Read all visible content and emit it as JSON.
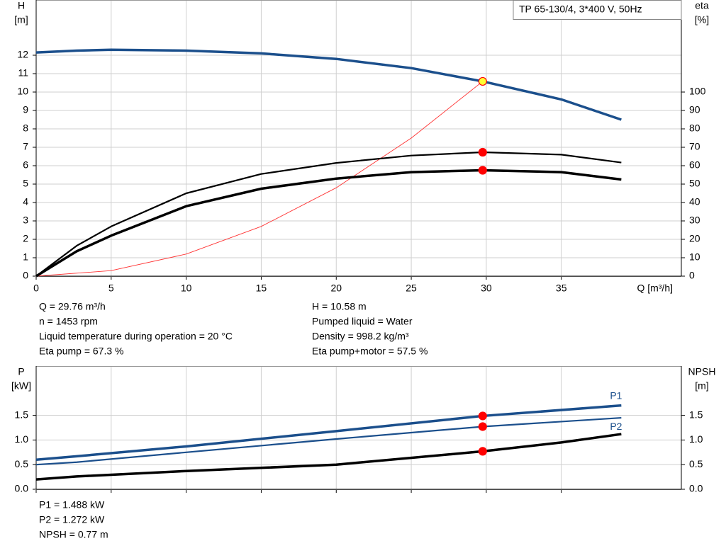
{
  "chart_data": [
    {
      "type": "line",
      "title": "TP 65-130/4, 3*400 V, 50Hz",
      "xlabel": "Q [m³/h]",
      "ylabel": [
        "H",
        "[m]"
      ],
      "y2label": [
        "eta",
        "[%]"
      ],
      "xlim": [
        0,
        43
      ],
      "xticks": [
        0,
        5,
        10,
        15,
        20,
        25,
        30,
        35
      ],
      "xtick_labels": true,
      "ylim": [
        0,
        15
      ],
      "yticks": [
        0,
        1,
        2,
        3,
        4,
        5,
        6,
        7,
        8,
        9,
        10,
        11,
        12
      ],
      "y2lim": [
        0,
        150
      ],
      "y2ticks": [
        0,
        10,
        20,
        30,
        40,
        50,
        60,
        70,
        80,
        90,
        100
      ],
      "grid": true,
      "series": [
        {
          "color": "#1b4f8c",
          "style": "thick",
          "x": [
            0,
            2.7,
            5,
            10,
            15,
            20,
            25,
            29.76,
            35,
            39
          ],
          "values": [
            12.15,
            12.25,
            12.3,
            12.25,
            12.1,
            11.8,
            11.3,
            10.58,
            9.6,
            8.5
          ],
          "point": {
            "x": 29.76,
            "value": 10.58
          },
          "point_fill": "#ffff33"
        },
        {
          "color": "#ff3333",
          "style": "thin",
          "x": [
            0,
            5,
            10,
            15,
            20,
            25,
            29.76
          ],
          "values": [
            0,
            0.3,
            1.2,
            2.7,
            4.8,
            7.5,
            10.58
          ]
        },
        {
          "color": "#000000",
          "style": "medium",
          "axis": "y2",
          "x": [
            0,
            2.7,
            5,
            10,
            15,
            20,
            25,
            29.76,
            35,
            39
          ],
          "values": [
            0,
            16.5,
            27,
            45,
            55.5,
            61.5,
            65.5,
            67.3,
            66,
            61.7
          ],
          "point": {
            "x": 29.76,
            "value": 67.3
          },
          "point_fill": "#ff0000"
        },
        {
          "color": "#000000",
          "style": "thick",
          "axis": "y2",
          "x": [
            0,
            2.7,
            5,
            10,
            15,
            20,
            25,
            29.76,
            35,
            39
          ],
          "values": [
            0,
            13.5,
            22,
            38,
            47.5,
            53,
            56.5,
            57.5,
            56.5,
            52.5
          ],
          "point": {
            "x": 29.76,
            "value": 57.5
          },
          "point_fill": "#ff0000"
        }
      ],
      "info_left": [
        "Q = 29.76 m³/h",
        "n = 1453 rpm",
        "Liquid temperature during operation = 20 °C",
        "Eta pump = 67.3 %"
      ],
      "info_right": [
        "H = 10.58 m",
        "Pumped liquid = Water",
        "Density = 998.2 kg/m³",
        "Eta pump+motor = 57.5 %"
      ]
    },
    {
      "type": "line",
      "ylabel": [
        "P",
        "[kW]"
      ],
      "y2label": [
        "NPSH",
        "[m]"
      ],
      "xlim": [
        0,
        43
      ],
      "xticks": [
        0,
        5,
        10,
        15,
        20,
        25,
        30,
        35
      ],
      "xtick_labels": false,
      "ylim": [
        0,
        2.5
      ],
      "yticks": [
        {
          "value": 0,
          "label": "0.0"
        },
        0.5,
        {
          "value": 1,
          "label": "1.0"
        },
        1.5
      ],
      "y2lim": [
        0,
        2.5
      ],
      "y2ticks": [
        {
          "value": 0,
          "label": "0.0"
        },
        0.5,
        {
          "value": 1,
          "label": "1.0"
        },
        1.5
      ],
      "grid": true,
      "series": [
        {
          "name": "P1",
          "label_position": "above",
          "color": "#1b4f8c",
          "style": "thick",
          "x": [
            0,
            2.7,
            10,
            20,
            29.76,
            39
          ],
          "values": [
            0.6,
            0.67,
            0.87,
            1.18,
            1.488,
            1.7
          ],
          "point": {
            "x": 29.76,
            "value": 1.488
          },
          "point_fill": "#ff0000"
        },
        {
          "name": "P2",
          "label_position": "below",
          "color": "#1b4f8c",
          "style": "medium",
          "x": [
            0,
            2.7,
            10,
            20,
            29.76,
            39
          ],
          "values": [
            0.5,
            0.55,
            0.75,
            1.02,
            1.272,
            1.45
          ],
          "point": {
            "x": 29.76,
            "value": 1.272
          },
          "point_fill": "#ff0000"
        },
        {
          "color": "#000000",
          "style": "thick",
          "axis": "y2",
          "x": [
            0,
            2.7,
            10,
            20,
            29.76,
            35,
            39
          ],
          "values": [
            0.2,
            0.26,
            0.37,
            0.5,
            0.77,
            0.95,
            1.12
          ],
          "point": {
            "x": 29.76,
            "value": 0.77
          },
          "point_fill": "#ff0000"
        }
      ],
      "info": [
        "P1 = 1.488 kW",
        "P2 = 1.272 kW",
        "NPSH = 0.77 m"
      ]
    }
  ]
}
